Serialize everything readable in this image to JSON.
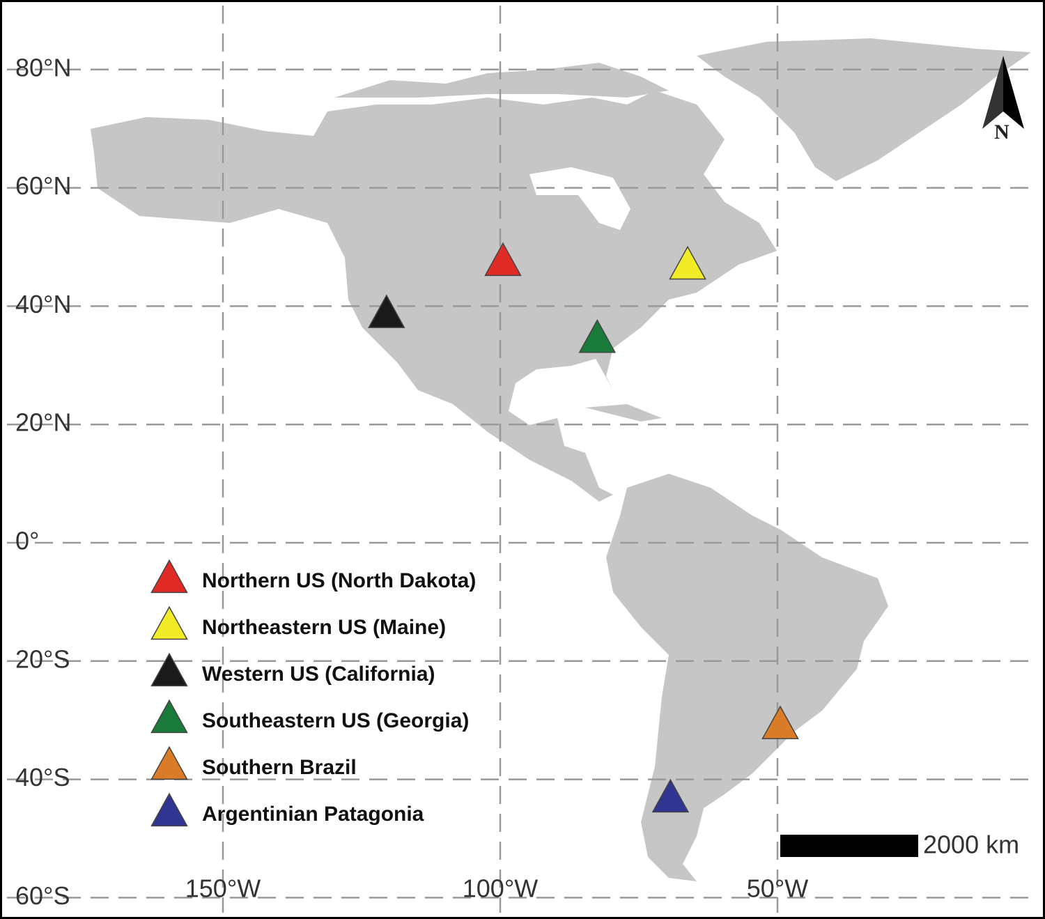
{
  "map": {
    "lat_ticks": [
      {
        "value": 80,
        "label": "80°N"
      },
      {
        "value": 60,
        "label": "60°N"
      },
      {
        "value": 40,
        "label": "40°N"
      },
      {
        "value": 20,
        "label": "20°N"
      },
      {
        "value": 0,
        "label": "0°"
      },
      {
        "value": -20,
        "label": "20°S"
      },
      {
        "value": -40,
        "label": "40°S"
      },
      {
        "value": -60,
        "label": "60°S"
      }
    ],
    "lon_ticks": [
      {
        "value": -150,
        "label": "150°W"
      },
      {
        "value": -100,
        "label": "100°W"
      },
      {
        "value": -50,
        "label": "50°W"
      }
    ],
    "sites": [
      {
        "name": "Northern US (North Dakota)",
        "color": "#e02a26",
        "lon": -99.5,
        "lat": 47
      },
      {
        "name": "Northeastern US (Maine)",
        "color": "#f2ec26",
        "lon": -66.2,
        "lat": 46.4
      },
      {
        "name": "Western US (California)",
        "color": "#1a1a1a",
        "lon": -120.5,
        "lat": 38.2
      },
      {
        "name": "Southeastern US (Georgia)",
        "color": "#1a7a3a",
        "lon": -82.5,
        "lat": 34
      },
      {
        "name": "Southern Brazil",
        "color": "#d97b27",
        "lon": -49.5,
        "lat": -31.3
      },
      {
        "name": "Argentinian Patagonia",
        "color": "#2f3590",
        "lon": -69.3,
        "lat": -43.7
      }
    ],
    "scale_bar": "2000 km",
    "north_arrow": "N"
  }
}
